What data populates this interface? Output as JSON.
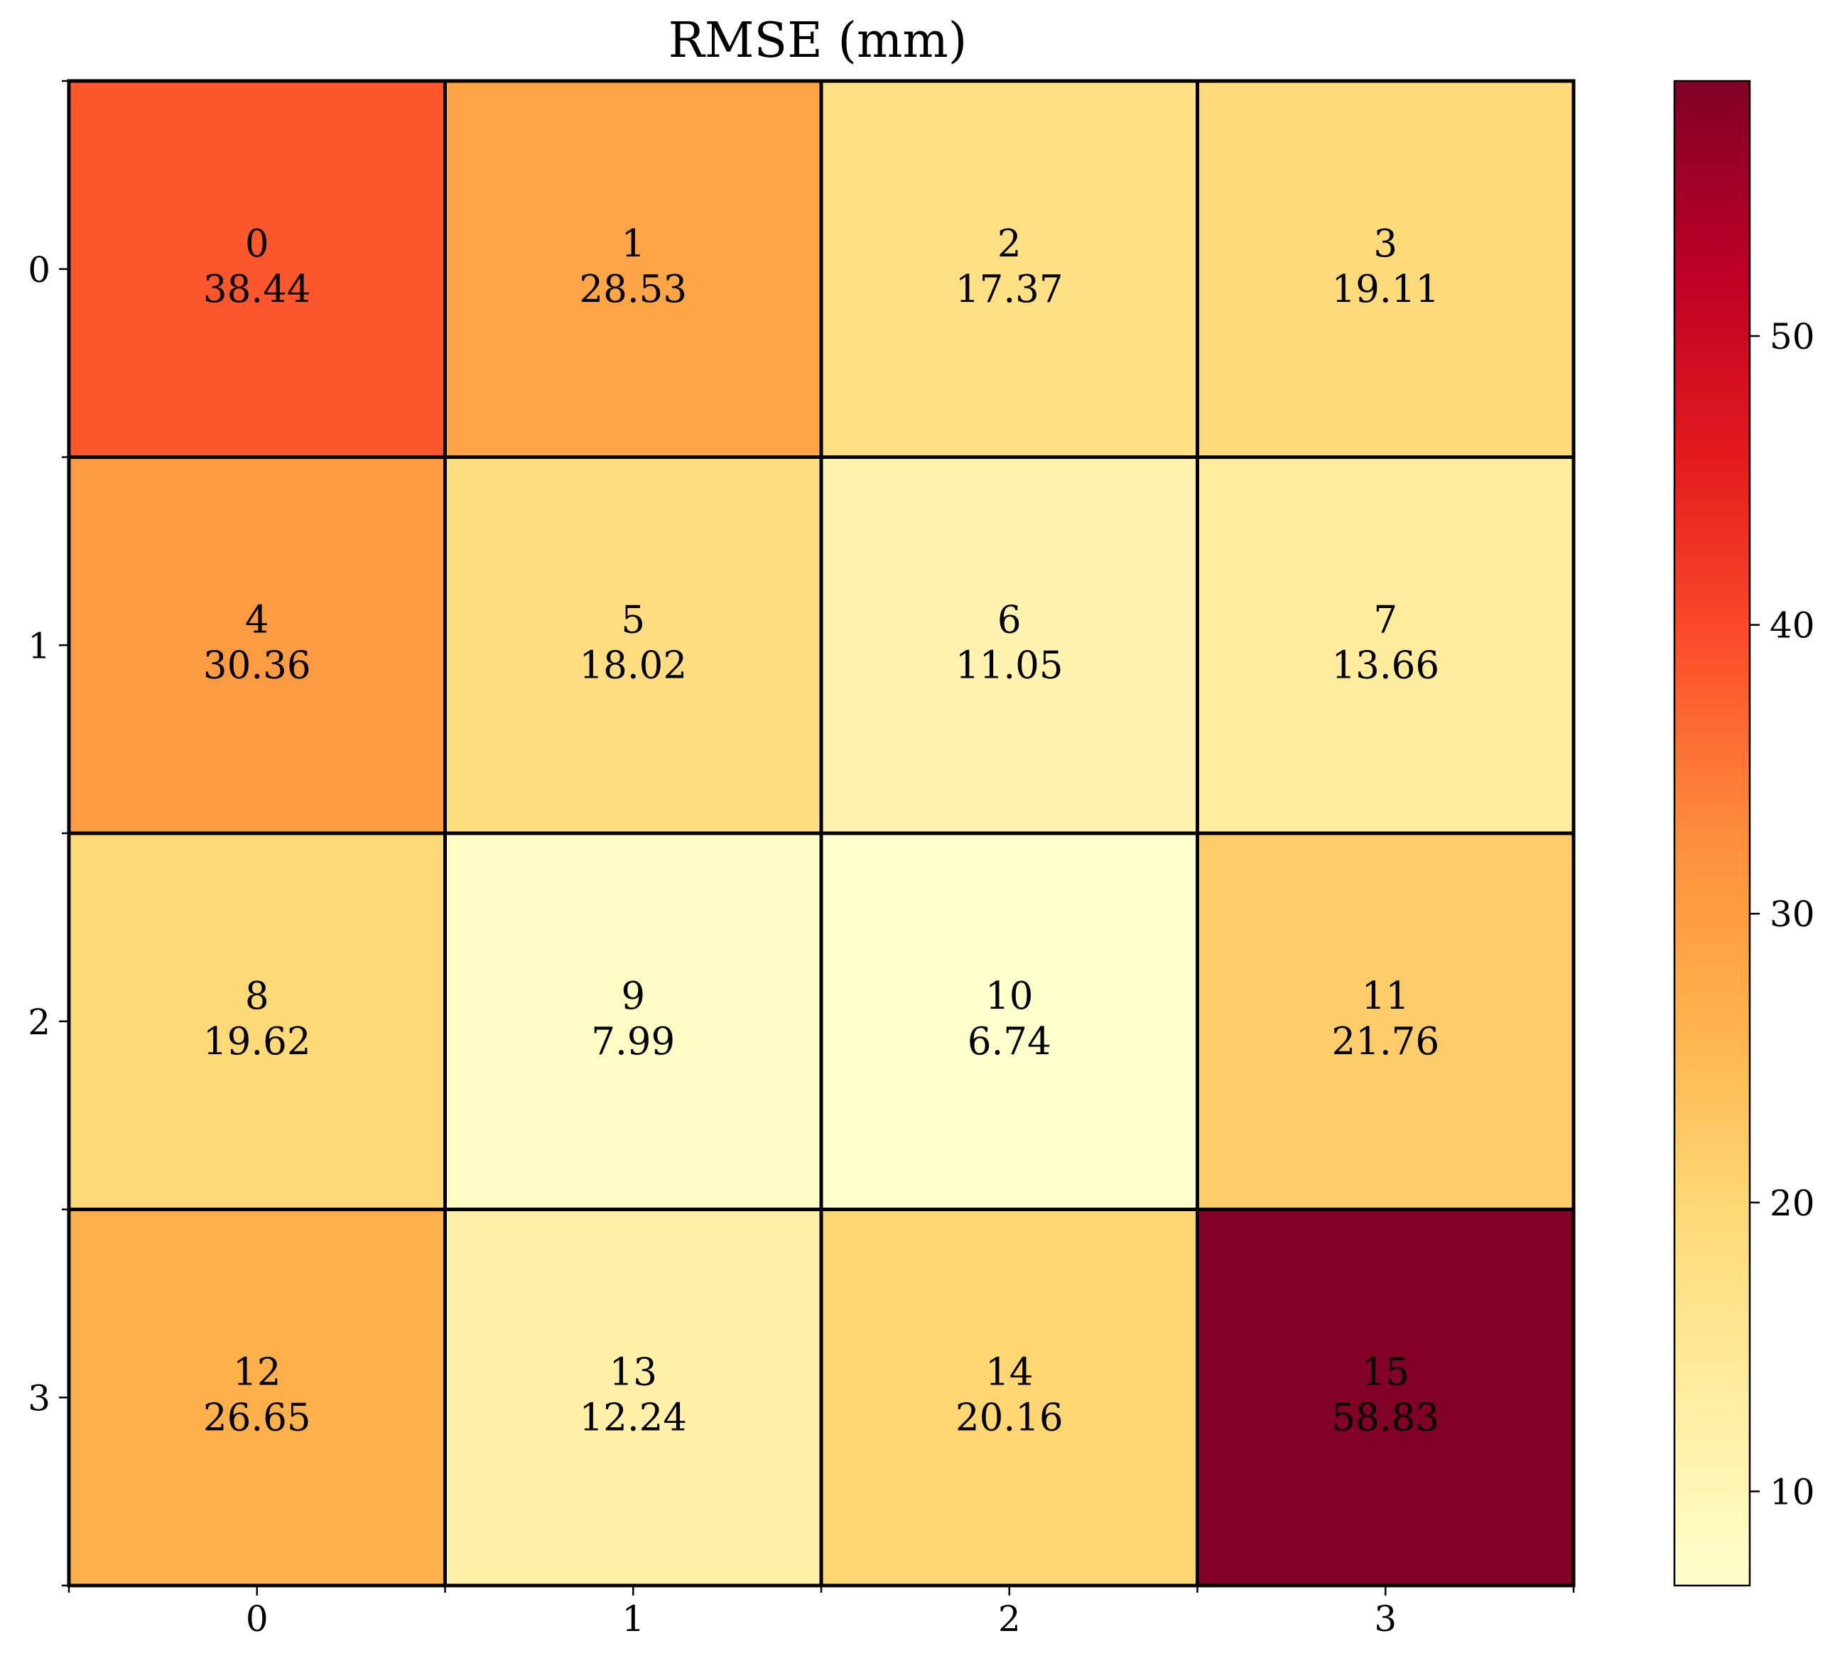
{
  "chart_data": {
    "type": "heatmap",
    "title": "RMSE (mm)",
    "xlabel": "",
    "ylabel": "",
    "x_ticks": [
      "0",
      "1",
      "2",
      "3"
    ],
    "y_ticks": [
      "0",
      "1",
      "2",
      "3"
    ],
    "cells": [
      [
        {
          "index": "0",
          "value": "38.44"
        },
        {
          "index": "1",
          "value": "28.53"
        },
        {
          "index": "2",
          "value": "17.37"
        },
        {
          "index": "3",
          "value": "19.11"
        }
      ],
      [
        {
          "index": "4",
          "value": "30.36"
        },
        {
          "index": "5",
          "value": "18.02"
        },
        {
          "index": "6",
          "value": "11.05"
        },
        {
          "index": "7",
          "value": "13.66"
        }
      ],
      [
        {
          "index": "8",
          "value": "19.62"
        },
        {
          "index": "9",
          "value": "7.99"
        },
        {
          "index": "10",
          "value": "6.74"
        },
        {
          "index": "11",
          "value": "21.76"
        }
      ],
      [
        {
          "index": "12",
          "value": "26.65"
        },
        {
          "index": "13",
          "value": "12.24"
        },
        {
          "index": "14",
          "value": "20.16"
        },
        {
          "index": "15",
          "value": "58.83"
        }
      ]
    ],
    "colorbar": {
      "colormap": "YlOrRd",
      "range": [
        6.74,
        58.83
      ],
      "ticks": [
        {
          "label": "10",
          "value": 10
        },
        {
          "label": "20",
          "value": 20
        },
        {
          "label": "30",
          "value": 30
        },
        {
          "label": "40",
          "value": 40
        },
        {
          "label": "50",
          "value": 50
        }
      ]
    },
    "grid": false,
    "cell_border_color": "#000000"
  }
}
